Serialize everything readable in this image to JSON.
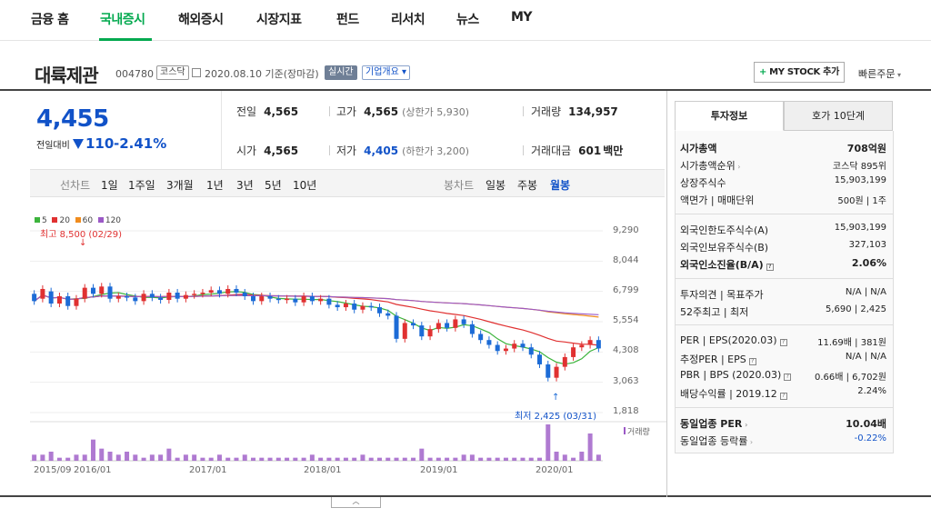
{
  "nav": {
    "items": [
      "금융 홈",
      "국내증시",
      "해외증시",
      "시장지표",
      "펀드",
      "리서치",
      "뉴스",
      "MY"
    ]
  },
  "stock": {
    "name": "대륙제관",
    "code": "004780",
    "market_tag": "코스닥",
    "date": "2020.08.10 기준(장마감)",
    "realtime_tag": "실시간",
    "company_tag": "기업개요",
    "my_stock_label": "MY STOCK 추가",
    "quick_order": "빠른주문",
    "price": "4,455",
    "change_label": "전일대비",
    "change_value": "110",
    "change_pct": "-2.41%"
  },
  "stats": {
    "prev_label": "전일",
    "prev": "4,565",
    "high_label": "고가",
    "high": "4,565",
    "high_sub": "(상한가 5,930)",
    "volume_label": "거래량",
    "volume": "134,957",
    "open_label": "시가",
    "open": "4,565",
    "low_label": "저가",
    "low": "4,405",
    "low_sub": "(하한가 3,200)",
    "amount_label": "거래대금",
    "amount": "601",
    "amount_unit": "백만"
  },
  "periods": {
    "line_label": "선차트",
    "line": [
      "1일",
      "1주일",
      "3개월",
      "1년",
      "3년",
      "5년",
      "10년"
    ],
    "candle_label": "봉차트",
    "candle": [
      "일봉",
      "주봉",
      "월봉"
    ]
  },
  "chart_data": {
    "type": "candlestick",
    "legend": [
      {
        "name": "5",
        "color": "#3cb43c"
      },
      {
        "name": "20",
        "color": "#e03131"
      },
      {
        "name": "60",
        "color": "#f08c1e"
      },
      {
        "name": "120",
        "color": "#9b59c6"
      }
    ],
    "y_ticks": [
      "9,290",
      "8,044",
      "6,799",
      "5,554",
      "4,308",
      "3,063",
      "1,818"
    ],
    "x_ticks": [
      "2015/09",
      "2016/01",
      "2017/01",
      "2018/01",
      "2019/01",
      "2020/01"
    ],
    "volume_label": "거래량",
    "high_annotation": "최고 8,500 (02/29)",
    "low_annotation": "최저 2,425 (03/31)",
    "candles": [
      [
        6700,
        6400
      ],
      [
        6500,
        6900
      ],
      [
        6800,
        6300
      ],
      [
        6300,
        6600
      ],
      [
        6600,
        6200
      ],
      [
        6200,
        6500
      ],
      [
        6500,
        6950
      ],
      [
        6950,
        6700
      ],
      [
        6700,
        7000
      ],
      [
        7000,
        6500
      ],
      [
        6500,
        6600
      ],
      [
        6600,
        6550
      ],
      [
        6550,
        6400
      ],
      [
        6400,
        6700
      ],
      [
        6700,
        6550
      ],
      [
        6550,
        6450
      ],
      [
        6450,
        6750
      ],
      [
        6750,
        6500
      ],
      [
        6500,
        6650
      ],
      [
        6650,
        6700
      ],
      [
        6700,
        6750
      ],
      [
        6750,
        6850
      ],
      [
        6850,
        6700
      ],
      [
        6700,
        6900
      ],
      [
        6900,
        6750
      ],
      [
        6750,
        6600
      ],
      [
        6600,
        6400
      ],
      [
        6400,
        6600
      ],
      [
        6600,
        6500
      ],
      [
        6500,
        6450
      ],
      [
        6450,
        6500
      ],
      [
        6500,
        6350
      ],
      [
        6350,
        6600
      ],
      [
        6600,
        6400
      ],
      [
        6400,
        6500
      ],
      [
        6500,
        6250
      ],
      [
        6250,
        6150
      ],
      [
        6150,
        6300
      ],
      [
        6300,
        6050
      ],
      [
        6050,
        6200
      ],
      [
        6200,
        6150
      ],
      [
        6150,
        5900
      ],
      [
        5900,
        5800
      ],
      [
        5800,
        4850
      ],
      [
        4850,
        5500
      ],
      [
        5500,
        5400
      ],
      [
        5400,
        4950
      ],
      [
        4950,
        5250
      ],
      [
        5250,
        5500
      ],
      [
        5500,
        5300
      ],
      [
        5300,
        5650
      ],
      [
        5650,
        5450
      ],
      [
        5450,
        5050
      ],
      [
        5050,
        4800
      ],
      [
        4800,
        4600
      ],
      [
        4600,
        4350
      ],
      [
        4350,
        4450
      ],
      [
        4450,
        4650
      ],
      [
        4650,
        4500
      ],
      [
        4500,
        4200
      ],
      [
        4200,
        3800
      ],
      [
        3800,
        3250
      ],
      [
        3250,
        3700
      ],
      [
        3700,
        4100
      ],
      [
        4100,
        4500
      ],
      [
        4500,
        4600
      ],
      [
        4600,
        4800
      ],
      [
        4800,
        4455
      ]
    ],
    "volumes": [
      2,
      2,
      3,
      1,
      1,
      2,
      2,
      7,
      4,
      3,
      2,
      3,
      2,
      1,
      2,
      2,
      4,
      1,
      2,
      2,
      1,
      1,
      2,
      1,
      1,
      2,
      1,
      1,
      1,
      1,
      1,
      1,
      1,
      2,
      1,
      1,
      1,
      1,
      1,
      2,
      1,
      1,
      1,
      1,
      1,
      1,
      4,
      1,
      1,
      1,
      1,
      2,
      2,
      1,
      1,
      1,
      1,
      1,
      1,
      1,
      1,
      12,
      3,
      2,
      1,
      3,
      9,
      2
    ]
  },
  "panel": {
    "tab_on": "투자정보",
    "tab_off": "호가 10단계",
    "rows1": [
      {
        "label": "시가총액",
        "value": "708억원",
        "bold": true
      },
      {
        "label": "시가총액순위",
        "value": "코스닥 895위"
      },
      {
        "label": "상장주식수",
        "value": "15,903,199"
      },
      {
        "label": "액면가 | 매매단위",
        "value": "500원 | 1주"
      }
    ],
    "rows2": [
      {
        "label": "외국인한도주식수(A)",
        "value": "15,903,199"
      },
      {
        "label": "외국인보유주식수(B)",
        "value": "327,103"
      },
      {
        "label": "외국인소진율(B/A)",
        "value": "2.06%",
        "bold": true
      }
    ],
    "rows3": [
      {
        "label": "투자의견 | 목표주가",
        "value": "N/A | N/A"
      },
      {
        "label": "52주최고 | 최저",
        "value": "5,690 | 2,425"
      }
    ],
    "rows4": [
      {
        "label": "PER | EPS(2020.03)",
        "value": "11.69배 | 381원"
      },
      {
        "label": "추정PER | EPS",
        "value": "N/A | N/A"
      },
      {
        "label": "PBR | BPS (2020.03)",
        "value": "0.66배 | 6,702원"
      },
      {
        "label": "배당수익률 | 2019.12",
        "value": "2.24%"
      }
    ],
    "rows5": [
      {
        "label": "동일업종 PER",
        "value": "10.04배",
        "bold": true
      },
      {
        "label": "동일업종 등락률",
        "value": "-0.22%",
        "blue": true
      }
    ]
  }
}
